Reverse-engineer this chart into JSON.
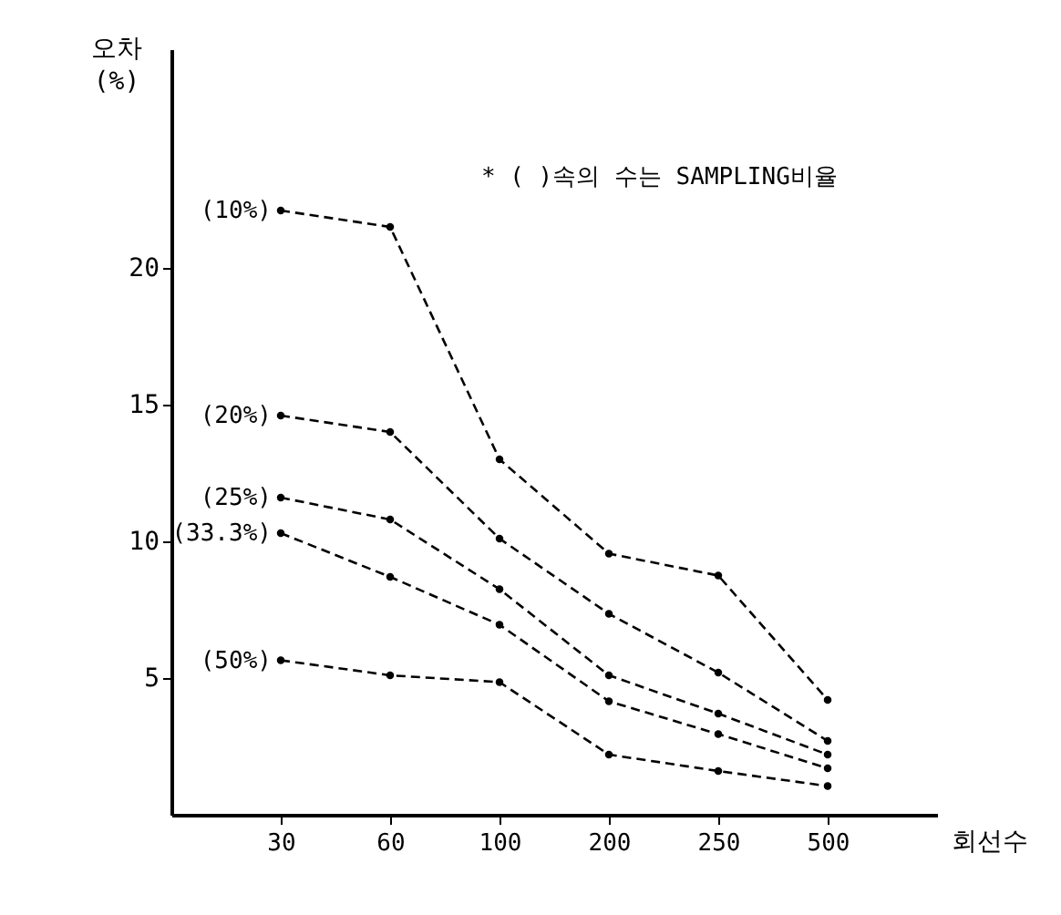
{
  "chart_data": {
    "type": "line",
    "xlabel": "회선수",
    "ylabel": "오차 (%)",
    "categories": [
      "30",
      "60",
      "100",
      "200",
      "250",
      "500"
    ],
    "ylim": [
      0,
      28
    ],
    "yticks": [
      5,
      10,
      15,
      20
    ],
    "grid": false,
    "legend": false,
    "marker": "circle",
    "line_style": "dashed",
    "annotations": [
      "* (   )속의 수는 SAMPLING비율"
    ],
    "series": [
      {
        "name": "(10%)",
        "color": "#000000",
        "values": [
          22.1,
          21.5,
          13.0,
          9.55,
          8.75,
          4.2
        ]
      },
      {
        "name": "(20%)",
        "color": "#000000",
        "values": [
          14.6,
          14.0,
          10.1,
          7.35,
          5.2,
          2.7
        ]
      },
      {
        "name": "(25%)",
        "color": "#000000",
        "values": [
          11.6,
          10.8,
          8.25,
          5.1,
          3.7,
          2.2
        ]
      },
      {
        "name": "(33.3%)",
        "color": "#000000",
        "values": [
          10.3,
          8.7,
          6.95,
          4.15,
          2.95,
          1.7
        ]
      },
      {
        "name": "(50%)",
        "color": "#000000",
        "values": [
          5.65,
          5.1,
          4.85,
          2.2,
          1.6,
          1.05
        ]
      }
    ]
  }
}
